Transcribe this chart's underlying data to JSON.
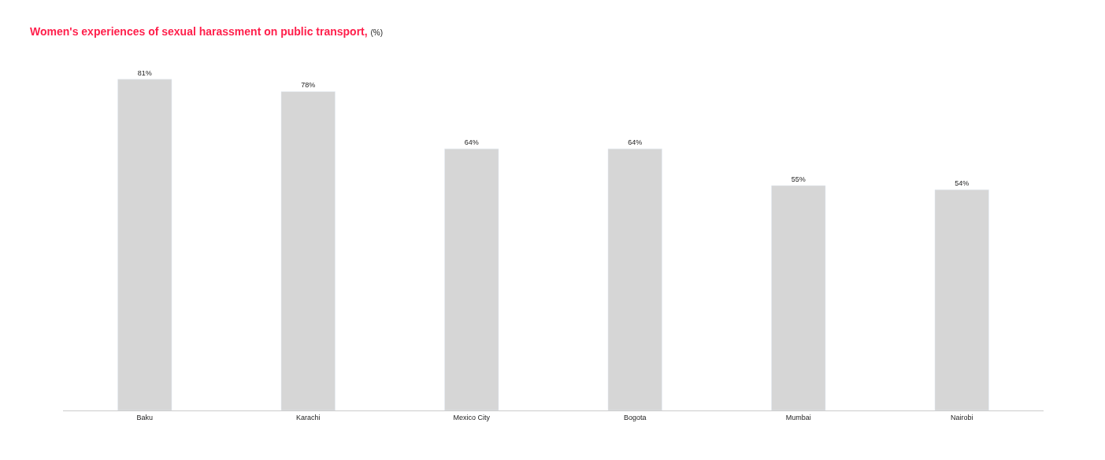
{
  "chart_data": {
    "type": "bar",
    "title": "Women's experiences of sexual harassment on public transport,",
    "subtitle": "(%)",
    "categories": [
      "Baku",
      "Karachi",
      "Mexico City",
      "Bogota",
      "Mumbai",
      "Nairobi"
    ],
    "values": [
      81,
      78,
      64,
      64,
      55,
      54
    ],
    "value_labels": [
      "81%",
      "78%",
      "64%",
      "64%",
      "55%",
      "54%"
    ],
    "color": "#d6d6d6",
    "legend": false
  }
}
